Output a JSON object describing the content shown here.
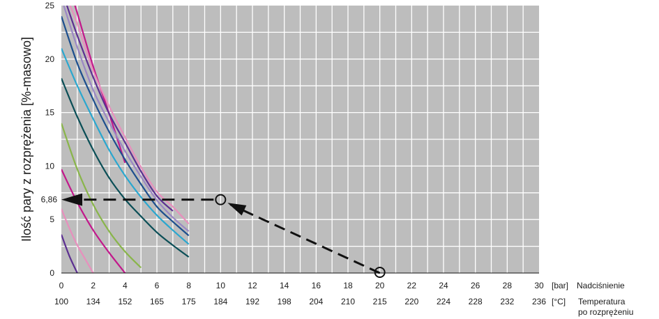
{
  "chart_data": {
    "type": "line",
    "ylabel": "Ilość pary z rozprężenia [%-masowo]",
    "xlim": [
      0,
      30
    ],
    "ylim": [
      0,
      25
    ],
    "grid": true,
    "y_ticks": [
      "0",
      "5",
      "10",
      "15",
      "20",
      "25"
    ],
    "x_ticks": [
      0,
      2,
      4,
      6,
      8,
      10,
      12,
      14,
      16,
      18,
      20,
      22,
      24,
      26,
      28,
      30
    ],
    "x_tick_labels_bar": [
      "0",
      "2",
      "4",
      "6",
      "8",
      "10",
      "12",
      "14",
      "16",
      "18",
      "20",
      "22",
      "24",
      "26",
      "28",
      "30"
    ],
    "x_tick_labels_temp": [
      "100",
      "134",
      "152",
      "165",
      "175",
      "184",
      "192",
      "198",
      "204",
      "210",
      "215",
      "220",
      "224",
      "228",
      "232",
      "236"
    ],
    "x_unit_bar": "[bar]",
    "x_unit_temp": "[°C]",
    "x_caption_bar": "Nadciśnienie",
    "x_caption_temp": [
      "Temperatura",
      "po rozprężeniu"
    ],
    "annotation": {
      "value_label": "6,86",
      "start": {
        "x": 20,
        "y": 0
      },
      "point": {
        "x": 10,
        "y": 6.86
      }
    },
    "series": [
      {
        "color": "#c2188b",
        "x": [
          0.85,
          1.0,
          2.0,
          3.0,
          4.0
        ],
        "y": [
          25,
          24.3,
          19.3,
          14.9,
          10.3
        ]
      },
      {
        "color": "#e88fbd",
        "x": [
          0.55,
          1.0,
          2.0,
          3.0,
          4.0,
          5.0,
          6.0,
          7.0,
          8.0
        ],
        "y": [
          25,
          23.3,
          18.9,
          15.6,
          12.7,
          9.9,
          7.6,
          6.2,
          4.6
        ]
      },
      {
        "color": "#5c2f91",
        "x": [
          0.35,
          1.0,
          2.0,
          3.0,
          4.0,
          5.0,
          6.0,
          7.0
        ],
        "y": [
          25,
          22.2,
          18.3,
          14.9,
          12.2,
          9.5,
          7.2,
          5.8
        ]
      },
      {
        "color": "#9b87c4",
        "x": [
          0.15,
          1.0,
          2.0,
          3.0,
          4.0,
          5.0,
          6.0,
          7.0,
          8.0
        ],
        "y": [
          25,
          21.1,
          17.1,
          14.1,
          11.4,
          9.0,
          6.8,
          5.2,
          3.9
        ]
      },
      {
        "color": "#1d4f8e",
        "x": [
          0.0,
          1.0,
          2.0,
          3.0,
          4.0,
          5.0,
          6.0,
          7.0,
          8.0
        ],
        "y": [
          24.0,
          19.6,
          16.2,
          13.2,
          10.6,
          8.3,
          6.2,
          4.8,
          3.5
        ]
      },
      {
        "color": "#2aa7cf",
        "x": [
          0.0,
          1.0,
          2.0,
          3.0,
          4.0,
          5.0,
          6.0,
          7.0,
          8.0
        ],
        "y": [
          21.0,
          17.5,
          14.4,
          11.5,
          9.1,
          7.1,
          5.4,
          4.0,
          2.7
        ]
      },
      {
        "color": "#0a4e56",
        "x": [
          0.0,
          1.0,
          2.0,
          3.0,
          4.0,
          5.0,
          6.0,
          7.0,
          8.0
        ],
        "y": [
          18.2,
          14.6,
          11.5,
          8.9,
          6.9,
          5.3,
          3.8,
          2.6,
          1.5
        ]
      },
      {
        "color": "#89b54a",
        "x": [
          0.0,
          1.0,
          2.0,
          3.0,
          4.0,
          5.0
        ],
        "y": [
          14.0,
          9.7,
          6.4,
          3.9,
          2.0,
          0.5
        ]
      },
      {
        "color": "#c2188b",
        "x": [
          0.0,
          1.0,
          2.0,
          3.0,
          4.0
        ],
        "y": [
          9.7,
          6.6,
          4.0,
          1.9,
          0.0
        ]
      },
      {
        "color": "#e88fbd",
        "x": [
          0.0,
          0.5,
          1.0,
          1.5,
          2.0
        ],
        "y": [
          6.0,
          4.2,
          2.6,
          1.3,
          0.0
        ]
      },
      {
        "color": "#5c2f91",
        "x": [
          0.0,
          0.5,
          1.0
        ],
        "y": [
          3.6,
          1.6,
          0.0
        ]
      }
    ]
  }
}
